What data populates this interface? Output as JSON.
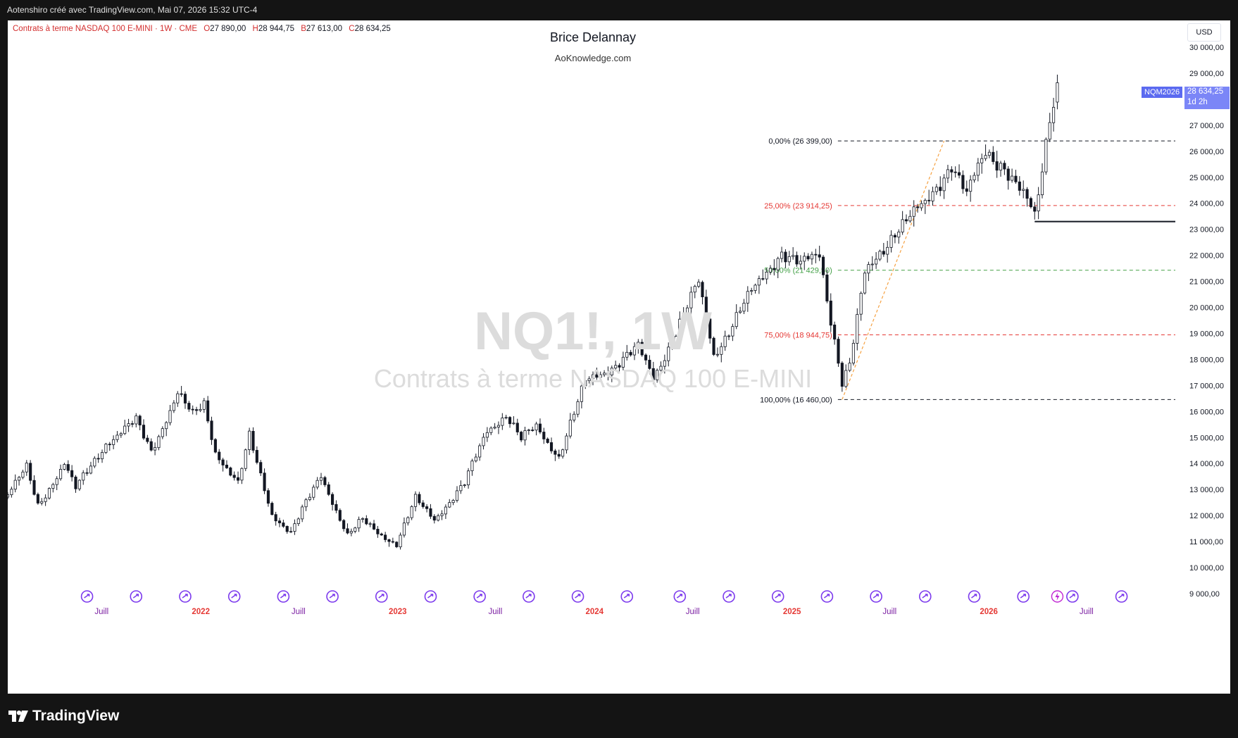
{
  "header": {
    "credit": "Aotenshiro créé avec TradingView.com, Mai 07, 2026 15:32 UTC-4"
  },
  "legend": {
    "symbol": "Contrats à terme NASDAQ 100 E-MINI · 1W · CME",
    "open_label": "O",
    "open": "27 890,00",
    "high_label": "H",
    "high": "28 944,75",
    "low_label": "B",
    "low": "27 613,00",
    "close_label": "C",
    "close": "28 634,25"
  },
  "title": "Brice Delannay",
  "subtitle": "AoKnowledge.com",
  "watermark": {
    "ticker": "NQ1!, 1W",
    "name": "Contrats à terme NASDAQ 100 E-MINI"
  },
  "currency": "USD",
  "price_tag": {
    "symbol": "NQM2026",
    "price": "28 634,25",
    "countdown": "1d 2h"
  },
  "footer": {
    "logo": "TradingView"
  },
  "colors": {
    "bull": "#ffffff",
    "bear": "#131722",
    "wick": "#131722",
    "fib_zero": "#131722",
    "fib_25": "#e53935",
    "fib_50": "#43a047",
    "fib_75": "#e53935",
    "trend_line": "#f5a142",
    "date_red": "#e53935",
    "date_purple": "#7b1fa2",
    "event_icon": "#7c3aed"
  },
  "chart_data": {
    "type": "candlestick",
    "timeframe": "1W",
    "ylim": [
      9000,
      30500
    ],
    "y_ticks": [
      9000,
      10000,
      11000,
      12000,
      13000,
      14000,
      15000,
      16000,
      17000,
      18000,
      19000,
      20000,
      21000,
      22000,
      23000,
      24000,
      25000,
      26000,
      27000,
      28000,
      29000,
      30000
    ],
    "y_tick_labels": [
      "9 000,00",
      "10 000,00",
      "11 000,00",
      "12 000,00",
      "13 000,00",
      "14 000,00",
      "15 000,00",
      "16 000,00",
      "17 000,00",
      "18 000,00",
      "19 000,00",
      "20 000,00",
      "21 000,00",
      "22 000,00",
      "23 000,00",
      "24 000,00",
      "25 000,00",
      "26 000,00",
      "27 000,00",
      "28 000,00",
      "29 000,00",
      "30 000,00"
    ],
    "x_ticks": [
      {
        "label": "Juill",
        "date": "2021-07-01",
        "style": "month"
      },
      {
        "label": "2022",
        "date": "2022-01-01",
        "style": "year"
      },
      {
        "label": "Juill",
        "date": "2022-07-01",
        "style": "month"
      },
      {
        "label": "2023",
        "date": "2023-01-01",
        "style": "year"
      },
      {
        "label": "Juill",
        "date": "2023-07-01",
        "style": "month"
      },
      {
        "label": "2024",
        "date": "2024-01-01",
        "style": "year"
      },
      {
        "label": "Juill",
        "date": "2024-07-01",
        "style": "month"
      },
      {
        "label": "2025",
        "date": "2025-01-01",
        "style": "year"
      },
      {
        "label": "Juill",
        "date": "2025-07-01",
        "style": "month"
      },
      {
        "label": "2026",
        "date": "2026-01-01",
        "style": "year"
      },
      {
        "label": "Juill",
        "date": "2026-07-01",
        "style": "month"
      }
    ],
    "x_start": "2021-01-08",
    "x_end": "2026-12-18",
    "anchors": [
      [
        "2021-01-08",
        12800
      ],
      [
        "2021-02-12",
        13800
      ],
      [
        "2021-03-05",
        12400
      ],
      [
        "2021-04-23",
        14000
      ],
      [
        "2021-05-14",
        13000
      ],
      [
        "2021-07-09",
        14800
      ],
      [
        "2021-09-03",
        15600
      ],
      [
        "2021-10-01",
        14500
      ],
      [
        "2021-11-19",
        16700
      ],
      [
        "2021-12-17",
        15800
      ],
      [
        "2022-01-07",
        16300
      ],
      [
        "2022-01-28",
        14500
      ],
      [
        "2022-03-11",
        13200
      ],
      [
        "2022-04-01",
        15000
      ],
      [
        "2022-05-13",
        12100
      ],
      [
        "2022-06-17",
        11300
      ],
      [
        "2022-08-12",
        13600
      ],
      [
        "2022-09-30",
        11200
      ],
      [
        "2022-10-28",
        11800
      ],
      [
        "2022-12-30",
        10900
      ],
      [
        "2023-02-03",
        12600
      ],
      [
        "2023-03-10",
        11900
      ],
      [
        "2023-05-05",
        13200
      ],
      [
        "2023-06-16",
        15300
      ],
      [
        "2023-07-21",
        15900
      ],
      [
        "2023-08-18",
        14900
      ],
      [
        "2023-09-15",
        15400
      ],
      [
        "2023-10-27",
        14300
      ],
      [
        "2023-12-15",
        17100
      ],
      [
        "2024-03-22",
        18400
      ],
      [
        "2024-04-19",
        17300
      ],
      [
        "2024-07-12",
        20900
      ],
      [
        "2024-08-09",
        18200
      ],
      [
        "2024-10-04",
        20100
      ],
      [
        "2024-12-13",
        22200
      ],
      [
        "2025-01-17",
        21600
      ],
      [
        "2025-02-21",
        22000
      ],
      [
        "2025-04-04",
        17200
      ],
      [
        "2025-04-18",
        17800
      ],
      [
        "2025-05-16",
        21200
      ],
      [
        "2025-07-11",
        23000
      ],
      [
        "2025-09-05",
        23900
      ],
      [
        "2025-10-24",
        25600
      ],
      [
        "2025-11-21",
        24300
      ],
      [
        "2025-12-26",
        25900
      ],
      [
        "2026-01-30",
        25500
      ],
      [
        "2026-03-06",
        24300
      ],
      [
        "2026-03-27",
        23400
      ],
      [
        "2026-04-10",
        25200
      ],
      [
        "2026-04-24",
        27400
      ],
      [
        "2026-05-08",
        28634
      ]
    ],
    "last_bar": {
      "date": "2026-05-08",
      "open": 27890.0,
      "high": 28944.75,
      "low": 27613.0,
      "close": 28634.25
    },
    "fibonacci": {
      "from": {
        "date": "2025-04-04",
        "price": 16460.0
      },
      "to": {
        "date": "2025-10-10",
        "price": 26399.0
      },
      "levels": [
        {
          "ratio": 0,
          "price": 26399.0,
          "label": "0,00% (26 399,00)"
        },
        {
          "ratio": 0.25,
          "price": 23914.25,
          "label": "25,00% (23 914,25)"
        },
        {
          "ratio": 0.5,
          "price": 21429.5,
          "label": "50,00% (21 429,50)"
        },
        {
          "ratio": 0.75,
          "price": 18944.75,
          "label": "75,00% (18 944,75)"
        },
        {
          "ratio": 1,
          "price": 16460.0,
          "label": "100,00% (16 460,00)"
        }
      ]
    },
    "horizontal_line": {
      "start_date": "2026-03-27",
      "price": 23300
    },
    "event_icons": [
      "2021-06-04",
      "2021-09-03",
      "2021-12-03",
      "2022-03-04",
      "2022-06-03",
      "2022-09-02",
      "2022-12-02",
      "2023-03-03",
      "2023-06-02",
      "2023-09-01",
      "2023-12-01",
      "2024-03-01",
      "2024-06-07",
      "2024-09-06",
      "2024-12-06",
      "2025-03-07",
      "2025-06-06",
      "2025-09-05",
      "2025-12-05",
      "2026-03-06",
      "2026-06-05",
      "2026-09-04"
    ],
    "flash_icon_date": "2026-05-08"
  }
}
